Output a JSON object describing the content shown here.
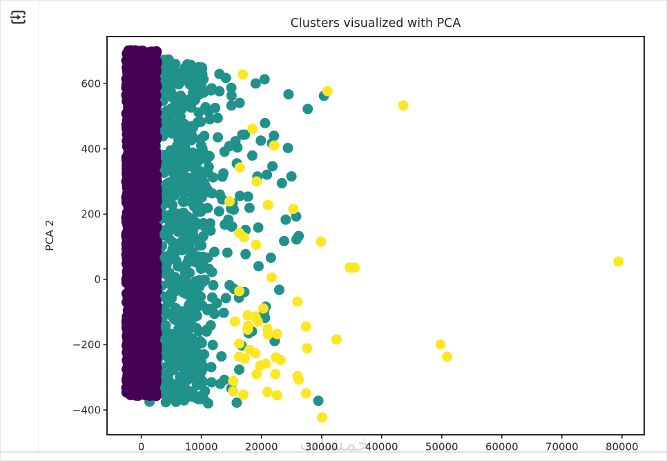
{
  "window": {
    "toolbar": {
      "icon": "run-and-advance-icon",
      "icon_color": "#3a3a3a"
    },
    "watermark": {
      "text": "خمسات",
      "color": "#dcdcdc"
    }
  },
  "chart_data": {
    "type": "scatter",
    "title": "Clusters visualized with PCA",
    "xlabel": "",
    "ylabel": "PCA 2",
    "xlim": [
      -5700,
      83700
    ],
    "ylim": [
      -476,
      744
    ],
    "x_ticks": [
      0,
      10000,
      20000,
      30000,
      40000,
      50000,
      60000,
      70000,
      80000
    ],
    "y_ticks": [
      -400,
      -200,
      0,
      200,
      400,
      600
    ],
    "grid": false,
    "legend": false,
    "marker_diameter_px": 15,
    "text_color": "#2b2b2b",
    "axis_color": "#262626",
    "series": [
      {
        "name": "cluster-teal",
        "color": "#21918c",
        "kind": "band",
        "x_range": [
          250,
          10500
        ],
        "y_bottom": -378,
        "y_top_at_x0": 695,
        "y_top_slope": -0.0045,
        "n": 780,
        "halo": {
          "x_start": 10500,
          "x_scale": 6000,
          "x_max": 30500,
          "y_bottom": -380,
          "y_top_at_x0": 697,
          "y_top_slope": -0.0035,
          "n": 120
        }
      },
      {
        "name": "cluster-purple",
        "color": "#440154",
        "kind": "band",
        "x_range": [
          -2500,
          2600
        ],
        "y_bottom": -357,
        "y_top_at_x0": 702,
        "y_top_slope": 0,
        "n": 2600
      },
      {
        "name": "cluster-yellow",
        "color": "#fde725",
        "kind": "points",
        "points": [
          [
            16900,
            628
          ],
          [
            31000,
            577
          ],
          [
            43600,
            533
          ],
          [
            18500,
            461
          ],
          [
            22100,
            410
          ],
          [
            16400,
            343
          ],
          [
            19200,
            300
          ],
          [
            14700,
            239
          ],
          [
            21100,
            228
          ],
          [
            25300,
            216
          ],
          [
            16300,
            142
          ],
          [
            17100,
            129
          ],
          [
            19100,
            106
          ],
          [
            29900,
            116
          ],
          [
            34700,
            36
          ],
          [
            35500,
            36
          ],
          [
            21700,
            6
          ],
          [
            16300,
            -36
          ],
          [
            26000,
            -68
          ],
          [
            20300,
            -89
          ],
          [
            17700,
            -110
          ],
          [
            19000,
            -114
          ],
          [
            15600,
            -129
          ],
          [
            19400,
            -129
          ],
          [
            17800,
            -142
          ],
          [
            27400,
            -144
          ],
          [
            21000,
            -152
          ],
          [
            17700,
            -154
          ],
          [
            21100,
            -169
          ],
          [
            22600,
            -167
          ],
          [
            32500,
            -184
          ],
          [
            16300,
            -197
          ],
          [
            18000,
            -216
          ],
          [
            19000,
            -226
          ],
          [
            27600,
            -211
          ],
          [
            16300,
            -237
          ],
          [
            17200,
            -243
          ],
          [
            19800,
            -264
          ],
          [
            20700,
            -258
          ],
          [
            22400,
            -239
          ],
          [
            23200,
            -247
          ],
          [
            19200,
            -290
          ],
          [
            22300,
            -290
          ],
          [
            26000,
            -296
          ],
          [
            26200,
            -307
          ],
          [
            15300,
            -311
          ],
          [
            15300,
            -343
          ],
          [
            17000,
            -353
          ],
          [
            21000,
            -345
          ],
          [
            22600,
            -355
          ],
          [
            27400,
            -349
          ],
          [
            30100,
            -423
          ],
          [
            49800,
            -199
          ],
          [
            50900,
            -237
          ],
          [
            79400,
            55
          ]
        ]
      }
    ]
  }
}
